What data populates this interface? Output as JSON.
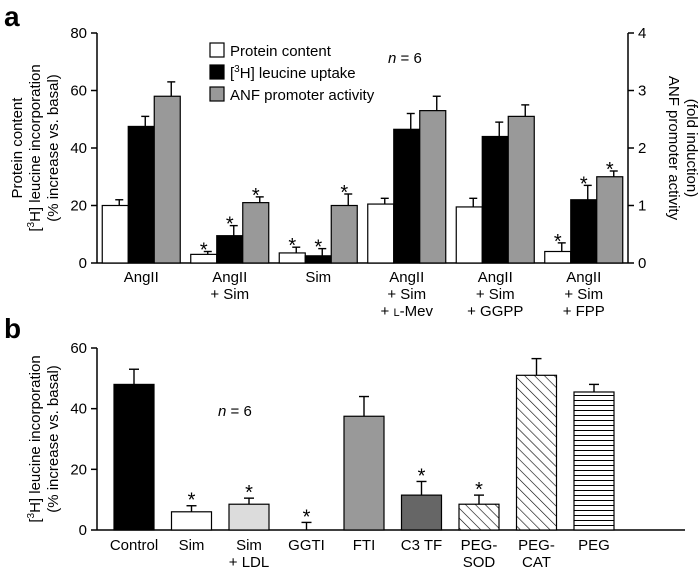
{
  "chart_data": [
    {
      "panel": "a",
      "type": "bar",
      "categories": [
        [
          "AngII"
        ],
        [
          "AngII",
          "+ Sim"
        ],
        [
          "Sim"
        ],
        [
          "AngII",
          "+ Sim",
          "+ L-Mev"
        ],
        [
          "AngII",
          "+ Sim",
          "+ GGPP"
        ],
        [
          "AngII",
          "+ Sim",
          "+ FPP"
        ]
      ],
      "series": [
        {
          "name": "Protein content",
          "color": "#ffffff",
          "axis": "left",
          "values": [
            20,
            3,
            3.5,
            20.5,
            19.5,
            4
          ],
          "errors": [
            2,
            1,
            2,
            2,
            3,
            3
          ],
          "significant": [
            false,
            true,
            true,
            false,
            false,
            true
          ]
        },
        {
          "name": "[3H] leucine uptake",
          "color": "#000000",
          "axis": "left",
          "values": [
            47.5,
            9.5,
            2.5,
            46.5,
            44,
            22
          ],
          "errors": [
            3.5,
            3.5,
            2.5,
            5.5,
            5,
            5
          ],
          "significant": [
            false,
            true,
            true,
            false,
            false,
            true
          ]
        },
        {
          "name": "ANF promoter activity",
          "color": "#999999",
          "axis": "right",
          "values": [
            2.9,
            1.05,
            1.0,
            2.65,
            2.55,
            1.5
          ],
          "errors": [
            0.25,
            0.1,
            0.2,
            0.25,
            0.2,
            0.1
          ],
          "significant": [
            false,
            true,
            true,
            false,
            false,
            true
          ]
        }
      ],
      "ylabel_left": [
        "Protein content",
        "[3H] leucine incorporation",
        "(% increase vs. basal)"
      ],
      "ylabel_right": [
        "ANF promoter activity",
        "(fold induction)"
      ],
      "ylim_left": [
        0,
        80
      ],
      "yticks_left": [
        0,
        20,
        40,
        60,
        80
      ],
      "ylim_right": [
        0,
        4
      ],
      "yticks_right": [
        0,
        1,
        2,
        3,
        4
      ],
      "annotation": "n = 6",
      "significance_marker": "*",
      "legend_position": "top-center"
    },
    {
      "panel": "b",
      "type": "bar",
      "categories": [
        [
          "Control"
        ],
        [
          "Sim"
        ],
        [
          "Sim",
          "+ LDL"
        ],
        [
          "GGTI"
        ],
        [
          "FTI"
        ],
        [
          "C3 TF"
        ],
        [
          "PEG-",
          "SOD"
        ],
        [
          "PEG-",
          "CAT"
        ],
        [
          "PEG"
        ]
      ],
      "values": [
        48,
        6,
        8.5,
        0,
        37.5,
        11.5,
        8.5,
        51,
        45.5
      ],
      "errors": [
        5,
        2,
        2,
        2.5,
        6.5,
        4.5,
        3,
        5.5,
        2.5
      ],
      "significant": [
        false,
        true,
        true,
        true,
        false,
        true,
        true,
        false,
        false
      ],
      "fills": [
        "black",
        "white",
        "lightgray",
        "white",
        "gray",
        "darkgray",
        "diagonal",
        "diagonal",
        "horizontal"
      ],
      "ylabel": [
        "[3H] leucine incorporation",
        "(% increase vs. basal)"
      ],
      "ylim": [
        0,
        60
      ],
      "yticks": [
        0,
        20,
        40,
        60
      ],
      "annotation": "n = 6",
      "significance_marker": "*"
    }
  ]
}
